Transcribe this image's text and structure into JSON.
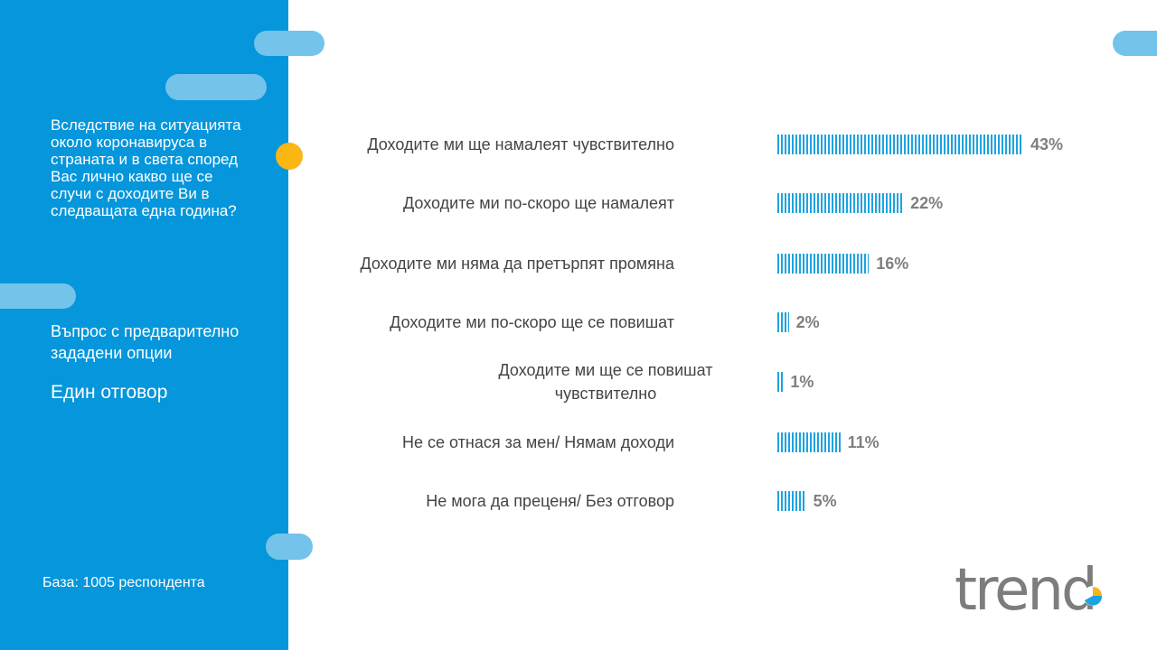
{
  "sidebar": {
    "question": "Вследствие на ситуацията около коронавируса в страната и в света според Вас лично какво ще се случи с доходите Ви в следващата една година?",
    "question_type": "Въпрос с предварително зададени опции",
    "answer_type": "Един отговор",
    "base": "База: 1005 респондента"
  },
  "logo_text": "trend",
  "colors": {
    "sidebar": "#0596db",
    "pill": "#73c3ea",
    "dot": "#fbb614",
    "bar": "#1da3e0",
    "value": "#7f7f7f"
  },
  "chart_data": {
    "type": "bar",
    "orientation": "horizontal",
    "categories": [
      "Доходите ми ще намалеят чувствително",
      "Доходите ми по-скоро ще намалеят",
      "Доходите ми няма да претърпят промяна",
      "Доходите ми по-скоро ще се повишат",
      "Доходите ми ще се повишат чувствително",
      "Не се отнася за мен/ Нямам доходи",
      "Не мога да преценя/ Без отговор"
    ],
    "values": [
      43,
      22,
      16,
      2,
      1,
      11,
      5
    ],
    "value_labels": [
      "43%",
      "22%",
      "16%",
      "2%",
      "1%",
      "11%",
      "5%"
    ],
    "unit": "%"
  }
}
